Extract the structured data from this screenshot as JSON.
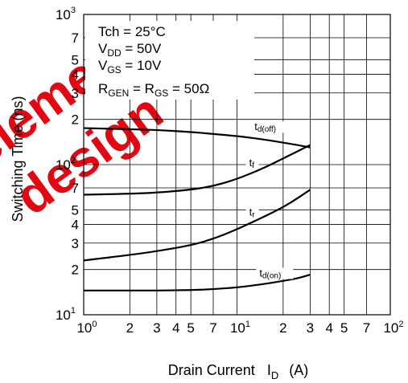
{
  "watermark": {
    "lines": [
      "element",
      "design"
    ],
    "color": "#e30613"
  },
  "chart_data": {
    "type": "line",
    "xlabel": {
      "text": "Drain Current",
      "symbol": "I",
      "subscript": "D",
      "unit": "(A)"
    },
    "ylabel": "Switching Time (ns)",
    "xscale": "log",
    "yscale": "log",
    "xlim": [
      1,
      100
    ],
    "ylim": [
      10,
      1000
    ],
    "grid": true,
    "x_ticks": [
      {
        "value": 1,
        "base": "10",
        "exp": "0"
      },
      {
        "value": 2,
        "label": "2"
      },
      {
        "value": 3,
        "label": "3"
      },
      {
        "value": 4,
        "label": "4"
      },
      {
        "value": 5,
        "label": "5"
      },
      {
        "value": 7,
        "label": "7"
      },
      {
        "value": 10,
        "base": "10",
        "exp": "1"
      },
      {
        "value": 20,
        "label": "2"
      },
      {
        "value": 30,
        "label": "3"
      },
      {
        "value": 40,
        "label": "4"
      },
      {
        "value": 50,
        "label": "5"
      },
      {
        "value": 70,
        "label": "7"
      },
      {
        "value": 100,
        "base": "10",
        "exp": "2"
      }
    ],
    "y_ticks": [
      {
        "value": 10,
        "base": "10",
        "exp": "1"
      },
      {
        "value": 20,
        "label": "2"
      },
      {
        "value": 30,
        "label": "3"
      },
      {
        "value": 40,
        "label": "4"
      },
      {
        "value": 50,
        "label": "5"
      },
      {
        "value": 70,
        "label": "7"
      },
      {
        "value": 100,
        "base": "10",
        "exp": "2"
      },
      {
        "value": 200,
        "label": "2"
      },
      {
        "value": 300,
        "label": "3"
      },
      {
        "value": 400,
        "label": "4"
      },
      {
        "value": 500,
        "label": "5"
      },
      {
        "value": 700,
        "label": "7"
      },
      {
        "value": 1000,
        "base": "10",
        "exp": "3"
      }
    ],
    "conditions": [
      {
        "main": "Tch = 25°C"
      },
      {
        "main": "V",
        "sub": "DD",
        "rest": " = 50V"
      },
      {
        "main": "V",
        "sub": "GS",
        "rest": " = 10V"
      },
      {
        "main": "R",
        "sub": "GEN",
        "rest": " = R",
        "sub2": "GS",
        "rest2": " = 50Ω"
      }
    ],
    "series": [
      {
        "name": "td(off)",
        "label_main": "t",
        "label_sub": "d(off)",
        "label_at": 13,
        "x": [
          1,
          2,
          3,
          5,
          7,
          10,
          15,
          20,
          25,
          30
        ],
        "y": [
          175,
          172,
          170,
          165,
          160,
          155,
          147,
          140,
          135,
          130
        ]
      },
      {
        "name": "tf",
        "label_main": "t",
        "label_sub": "f",
        "label_at": 12,
        "x": [
          1,
          2,
          3,
          5,
          7,
          10,
          15,
          20,
          25,
          30
        ],
        "y": [
          63,
          64,
          65,
          68,
          72,
          80,
          95,
          110,
          123,
          135
        ]
      },
      {
        "name": "tr",
        "label_main": "t",
        "label_sub": "r",
        "label_at": 12,
        "x": [
          1,
          2,
          3,
          5,
          7,
          10,
          15,
          20,
          25,
          30
        ],
        "y": [
          23,
          25,
          26.5,
          29,
          32,
          37,
          45,
          52,
          60,
          68
        ]
      },
      {
        "name": "td(on)",
        "label_main": "t",
        "label_sub": "d(on)",
        "label_at": 14,
        "x": [
          1,
          2,
          3,
          5,
          7,
          10,
          15,
          20,
          25,
          30
        ],
        "y": [
          14.5,
          14.5,
          14.5,
          14.6,
          14.8,
          15.2,
          16,
          16.8,
          17.5,
          18.5
        ]
      }
    ]
  }
}
